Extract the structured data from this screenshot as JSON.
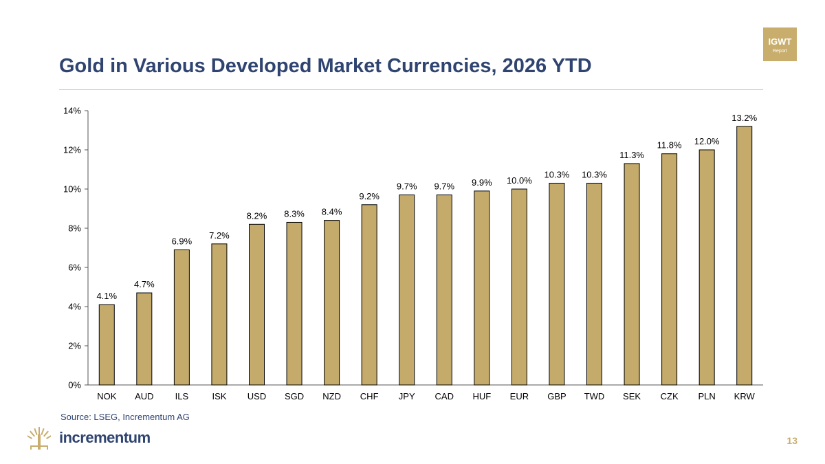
{
  "header": {
    "title": "Gold in Various Developed Market Currencies, 2026 YTD",
    "badge_title": "IGWT",
    "badge_subtitle": "Report"
  },
  "footer": {
    "source": "Source: LSEG, Incrementum AG",
    "brand": "incrementum",
    "page_number": "13"
  },
  "colors": {
    "title": "#2f4470",
    "accent_gold": "#c8ad6c",
    "bar_fill": "#c4ab6b",
    "bar_stroke": "#000000"
  },
  "chart_data": {
    "type": "bar",
    "categories": [
      "NOK",
      "AUD",
      "ILS",
      "ISK",
      "USD",
      "SGD",
      "NZD",
      "CHF",
      "JPY",
      "CAD",
      "HUF",
      "EUR",
      "GBP",
      "TWD",
      "SEK",
      "CZK",
      "PLN",
      "KRW"
    ],
    "values": [
      4.1,
      4.7,
      6.9,
      7.2,
      8.2,
      8.3,
      8.4,
      9.2,
      9.7,
      9.7,
      9.9,
      10.0,
      10.3,
      10.3,
      11.3,
      11.8,
      12.0,
      13.2
    ],
    "value_labels": [
      "4.1%",
      "4.7%",
      "6.9%",
      "7.2%",
      "8.2%",
      "8.3%",
      "8.4%",
      "9.2%",
      "9.7%",
      "9.7%",
      "9.9%",
      "10.0%",
      "10.3%",
      "10.3%",
      "11.3%",
      "11.8%",
      "12.0%",
      "13.2%"
    ],
    "ylim": [
      0,
      14
    ],
    "yticks": [
      0,
      2,
      4,
      6,
      8,
      10,
      12,
      14
    ],
    "ytick_labels": [
      "0%",
      "2%",
      "4%",
      "6%",
      "8%",
      "10%",
      "12%",
      "14%"
    ],
    "title": "Gold in Various Developed Market Currencies, 2026 YTD",
    "xlabel": "",
    "ylabel": "",
    "grid": false,
    "legend": "none"
  }
}
